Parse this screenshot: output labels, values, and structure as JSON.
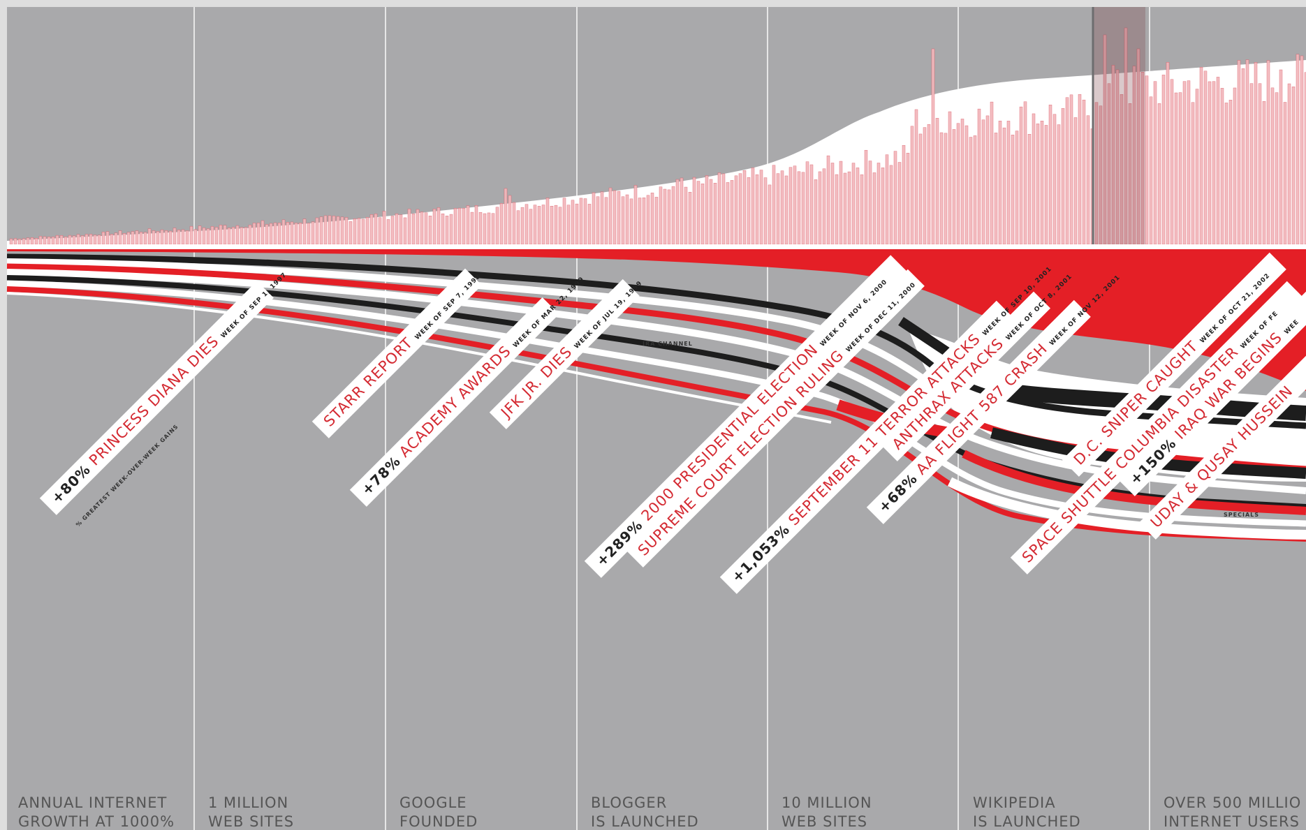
{
  "chart_data": {
    "type": "area",
    "title": "",
    "xlabel": "",
    "ylabel": "",
    "colors": {
      "background": "#a9a9ab",
      "bars": "#f2b8bc",
      "bar_stroke": "#d9505c",
      "red": "#e41f26",
      "black": "#1d1d1d",
      "white": "#ffffff",
      "milestone_line": "#e6e6e6",
      "label_red": "#d42a32"
    },
    "milestones": [
      {
        "line1": "ANNUAL INTERNET",
        "line2": "GROWTH AT 1000%"
      },
      {
        "line1": "1 MILLION",
        "line2": "WEB SITES"
      },
      {
        "line1": "GOOGLE",
        "line2": "FOUNDED"
      },
      {
        "line1": "BLOGGER",
        "line2": "IS LAUNCHED"
      },
      {
        "line1": "10 MILLION",
        "line2": "WEB SITES"
      },
      {
        "line1": "WIKIPEDIA",
        "line2": "IS LAUNCHED"
      },
      {
        "line1": "OVER 500 MILLIO",
        "line2": "INTERNET USERS"
      }
    ],
    "events": [
      {
        "name": "PRINCESS DIANA DIES",
        "pct": "+80%",
        "date": "WEEK OF SEP 1, 1997",
        "sub": "% GREATEST WEEK-OVER-WEEK GAINS"
      },
      {
        "name": "STARR REPORT",
        "pct": "",
        "date": "WEEK OF SEP 7, 1998"
      },
      {
        "name": "ACADEMY AWARDS",
        "pct": "+78%",
        "date": "WEEK OF MAR 22, 1999"
      },
      {
        "name": "JFK JR. DIES",
        "pct": "",
        "date": "WEEK OF JUL 19, 1999"
      },
      {
        "name": "2000 PRESIDENTIAL ELECTION",
        "pct": "+289%",
        "date": "WEEK OF NOV 6, 2000"
      },
      {
        "name": "SUPREME COURT ELECTION RULING",
        "pct": "",
        "date": "WEEK OF DEC 11, 2000"
      },
      {
        "name": "SEPTEMBER 11 TERROR ATTACKS",
        "pct": "+1,053%",
        "date": "WEEK OF SEP 10, 2001"
      },
      {
        "name": "ANTHRAX ATTACKS",
        "pct": "",
        "date": "WEEK OF OCT 8, 2001"
      },
      {
        "name": "AA FLIGHT 587 CRASH",
        "pct": "+68%",
        "date": "WEEK OF NOV 12, 2001"
      },
      {
        "name": "D.C. SNIPER CAUGHT",
        "pct": "",
        "date": "WEEK OF OCT 21, 2002"
      },
      {
        "name": "SPACE SHUTTLE COLUMBIA DISASTER",
        "pct": "",
        "date": "WEEK OF FE"
      },
      {
        "name": "IRAQ WAR BEGINS",
        "pct": "+150%",
        "date": "WEE"
      },
      {
        "name": "UDAY & QUSAY HUSSEIN",
        "pct": "",
        "date": ""
      }
    ],
    "stream_labels": [
      "IRA CHANNEL",
      "SPECIALS"
    ]
  }
}
